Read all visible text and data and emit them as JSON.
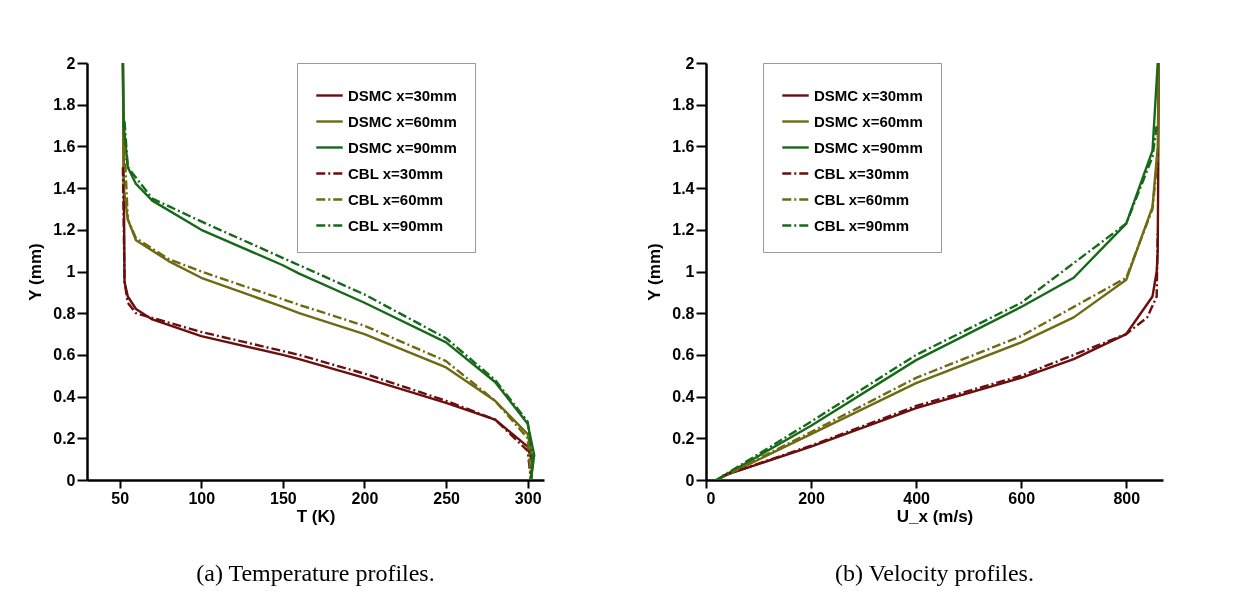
{
  "chart_data": [
    {
      "type": "line",
      "title": "(a) Temperature profiles.",
      "xlabel": "T (K)",
      "ylabel": "Y (mm)",
      "xlim": [
        30,
        310
      ],
      "xticks": [
        50,
        100,
        150,
        200,
        250,
        300
      ],
      "ylim": [
        0,
        2
      ],
      "yticks": [
        0,
        0.2,
        0.4,
        0.6,
        0.8,
        1,
        1.2,
        1.4,
        1.6,
        1.8,
        2
      ],
      "legend": "top right",
      "series": [
        {
          "name": "DSMC x=30mm",
          "color": "#6b0e0e",
          "line_style": "solid",
          "x": [
            52,
            52.5,
            53,
            55,
            60,
            70,
            100,
            150,
            160,
            200,
            250,
            280,
            300,
            303,
            302
          ],
          "values": [
            2,
            1.5,
            0.95,
            0.88,
            0.82,
            0.77,
            0.69,
            0.6,
            0.58,
            0.49,
            0.37,
            0.29,
            0.16,
            0.08,
            0
          ]
        },
        {
          "name": "DSMC x=60mm",
          "color": "#6e6a12",
          "line_style": "solid",
          "x": [
            52,
            52.5,
            55,
            60,
            80,
            100,
            150,
            160,
            200,
            250,
            280,
            300,
            303,
            302
          ],
          "values": [
            2,
            1.4,
            1.25,
            1.15,
            1.05,
            0.97,
            0.83,
            0.8,
            0.7,
            0.54,
            0.38,
            0.22,
            0.1,
            0
          ]
        },
        {
          "name": "DSMC x=90mm",
          "color": "#17691a",
          "line_style": "solid",
          "x": [
            52,
            52.5,
            55,
            60,
            70,
            100,
            150,
            160,
            200,
            250,
            280,
            300,
            304,
            302
          ],
          "values": [
            2,
            1.7,
            1.5,
            1.42,
            1.34,
            1.2,
            1.03,
            0.99,
            0.85,
            0.66,
            0.47,
            0.27,
            0.12,
            0
          ]
        },
        {
          "name": "CBL x=30mm",
          "color": "#6b0e0e",
          "line_style": "dashed",
          "x": [
            52,
            53,
            55,
            60,
            100,
            160,
            200,
            250,
            280,
            300,
            302
          ],
          "values": [
            1.5,
            0.95,
            0.85,
            0.8,
            0.71,
            0.6,
            0.51,
            0.38,
            0.29,
            0.14,
            0
          ]
        },
        {
          "name": "CBL x=60mm",
          "color": "#6e6a12",
          "line_style": "dashed",
          "x": [
            53,
            55,
            60,
            80,
            100,
            160,
            200,
            250,
            280,
            300,
            302
          ],
          "values": [
            1.6,
            1.25,
            1.16,
            1.06,
            1,
            0.84,
            0.74,
            0.57,
            0.38,
            0.2,
            0
          ]
        },
        {
          "name": "CBL x=90mm",
          "color": "#17691a",
          "line_style": "dashed",
          "x": [
            53,
            55,
            70,
            100,
            160,
            200,
            250,
            280,
            300,
            303,
            302
          ],
          "values": [
            1.72,
            1.5,
            1.35,
            1.24,
            1.03,
            0.89,
            0.68,
            0.48,
            0.28,
            0.1,
            0
          ]
        }
      ]
    },
    {
      "type": "line",
      "title": "(b) Velocity profiles.",
      "xlabel": "U_x (m/s)",
      "ylabel": "Y (mm)",
      "xlim": [
        0,
        870
      ],
      "xticks": [
        0,
        200,
        400,
        600,
        800
      ],
      "ylim": [
        0,
        2
      ],
      "yticks": [
        0,
        0.2,
        0.4,
        0.6,
        0.8,
        1,
        1.2,
        1.4,
        1.6,
        1.8,
        2
      ],
      "legend": "top left",
      "series": [
        {
          "name": "DSMC x=30mm",
          "color": "#6b0e0e",
          "line_style": "solid",
          "x": [
            32,
            200,
            400,
            600,
            700,
            800,
            850,
            858,
            860,
            862
          ],
          "values": [
            0.02,
            0.16,
            0.345,
            0.49,
            0.58,
            0.7,
            0.88,
            1,
            1.1,
            2
          ]
        },
        {
          "name": "DSMC x=60mm",
          "color": "#6e6a12",
          "line_style": "solid",
          "x": [
            20,
            200,
            400,
            600,
            700,
            800,
            850,
            860,
            862
          ],
          "values": [
            0,
            0.22,
            0.465,
            0.66,
            0.78,
            0.96,
            1.31,
            1.6,
            2
          ]
        },
        {
          "name": "DSMC x=90mm",
          "color": "#17691a",
          "line_style": "solid",
          "x": [
            20,
            200,
            400,
            600,
            700,
            800,
            850,
            860
          ],
          "values": [
            0,
            0.26,
            0.575,
            0.83,
            0.97,
            1.23,
            1.58,
            2
          ]
        },
        {
          "name": "CBL x=30mm",
          "color": "#6b0e0e",
          "line_style": "dashed",
          "x": [
            32,
            200,
            400,
            600,
            800,
            840,
            858,
            860
          ],
          "values": [
            0.02,
            0.165,
            0.355,
            0.5,
            0.7,
            0.78,
            0.88,
            1.2
          ]
        },
        {
          "name": "CBL x=60mm",
          "color": "#6e6a12",
          "line_style": "dashed",
          "x": [
            20,
            200,
            400,
            600,
            800,
            850,
            860
          ],
          "values": [
            0,
            0.23,
            0.49,
            0.69,
            0.97,
            1.3,
            1.55
          ]
        },
        {
          "name": "CBL x=90mm",
          "color": "#17691a",
          "line_style": "dashed",
          "x": [
            20,
            200,
            400,
            600,
            800,
            850,
            858
          ],
          "values": [
            0,
            0.28,
            0.6,
            0.85,
            1.23,
            1.55,
            1.7
          ]
        }
      ]
    }
  ]
}
